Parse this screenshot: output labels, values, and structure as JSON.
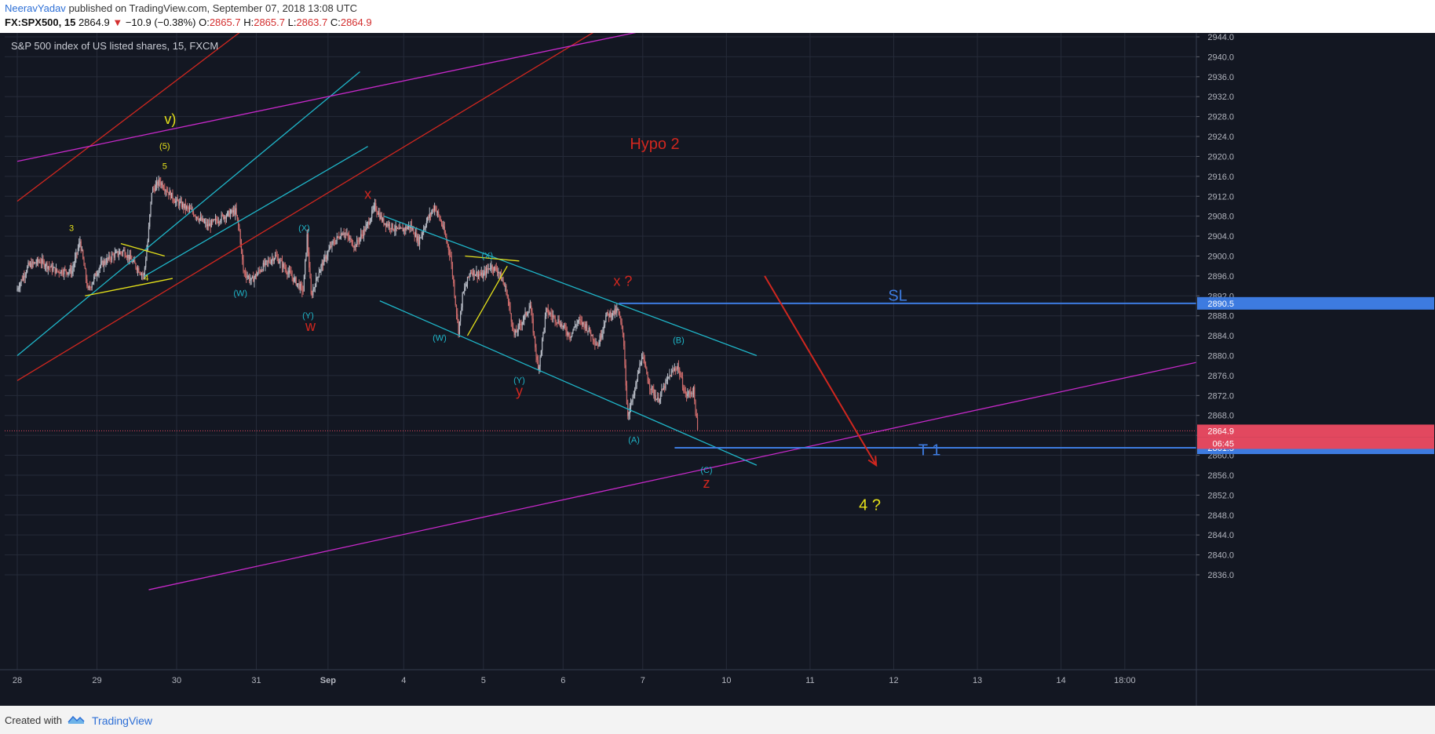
{
  "header": {
    "author": "NeeravYadav",
    "published_text": "published on TradingView.com, September 07, 2018 13:08 UTC",
    "symbol": "FX:SPX500, 15",
    "last": "2864.9",
    "change": "−10.9 (−0.38%)",
    "open_label": "O:",
    "open": "2865.7",
    "high_label": "H:",
    "high": "2865.7",
    "low_label": "L:",
    "low": "2863.7",
    "close_label": "C:",
    "close": "2864.9"
  },
  "footer": {
    "created_with": "Created with",
    "brand": "TradingView",
    "logo_icon": "tradingview-logo-icon"
  },
  "colors": {
    "background": "#131722",
    "grid": "#262b39",
    "candle_up": "#b8bcc6",
    "candle_down": "#cc6b6b",
    "cyan": "#1fb6c9",
    "red": "#d0271f",
    "magenta": "#c629c9",
    "yellow": "#e5e11a",
    "blue_level": "#3d7be0"
  },
  "chart_data": {
    "type": "candlestick",
    "title": "S&P 500 index of US listed shares, 15, FXCM",
    "ylim": [
      2832,
      2946
    ],
    "y_ticks": [
      "2944.0",
      "2940.0",
      "2936.0",
      "2932.0",
      "2928.0",
      "2924.0",
      "2920.0",
      "2916.0",
      "2912.0",
      "2908.0",
      "2904.0",
      "2900.0",
      "2896.0",
      "2892.0",
      "2888.0",
      "2884.0",
      "2880.0",
      "2876.0",
      "2872.0",
      "2868.0",
      "2864.0",
      "2860.0",
      "2856.0",
      "2852.0",
      "2848.0",
      "2844.0",
      "2840.0",
      "2836.0"
    ],
    "x_ticks": [
      "28",
      "29",
      "30",
      "31",
      "Sep",
      "4",
      "5",
      "6",
      "7",
      "10",
      "11",
      "12",
      "13",
      "14",
      "18:00"
    ],
    "price_path": [
      [
        0,
        2893
      ],
      [
        0.15,
        2898
      ],
      [
        0.3,
        2899
      ],
      [
        0.5,
        2897
      ],
      [
        0.7,
        2897
      ],
      [
        0.8,
        2903
      ],
      [
        0.9,
        2893
      ],
      [
        1.05,
        2898
      ],
      [
        1.2,
        2900
      ],
      [
        1.35,
        2901
      ],
      [
        1.5,
        2898
      ],
      [
        1.6,
        2896
      ],
      [
        1.65,
        2903
      ],
      [
        1.7,
        2913
      ],
      [
        1.8,
        2915
      ],
      [
        1.9,
        2913
      ],
      [
        2.0,
        2911
      ],
      [
        2.2,
        2909
      ],
      [
        2.4,
        2906
      ],
      [
        2.6,
        2908
      ],
      [
        2.75,
        2909
      ],
      [
        2.8,
        2905
      ],
      [
        2.85,
        2897
      ],
      [
        2.95,
        2895
      ],
      [
        3.1,
        2898
      ],
      [
        3.25,
        2900
      ],
      [
        3.35,
        2898
      ],
      [
        3.5,
        2895
      ],
      [
        3.6,
        2893
      ],
      [
        3.65,
        2904
      ],
      [
        3.7,
        2892
      ],
      [
        3.8,
        2897
      ],
      [
        3.95,
        2902
      ],
      [
        4.1,
        2905
      ],
      [
        4.25,
        2902
      ],
      [
        4.4,
        2906
      ],
      [
        4.5,
        2910
      ],
      [
        4.6,
        2907
      ],
      [
        4.8,
        2905
      ],
      [
        4.95,
        2906
      ],
      [
        5.05,
        2903
      ],
      [
        5.15,
        2907
      ],
      [
        5.25,
        2910
      ],
      [
        5.35,
        2906
      ],
      [
        5.45,
        2900
      ],
      [
        5.55,
        2885
      ],
      [
        5.6,
        2892
      ],
      [
        5.7,
        2897
      ],
      [
        5.85,
        2896
      ],
      [
        5.95,
        2898
      ],
      [
        6.05,
        2897
      ],
      [
        6.15,
        2893
      ],
      [
        6.25,
        2884
      ],
      [
        6.35,
        2887
      ],
      [
        6.45,
        2890
      ],
      [
        6.55,
        2877
      ],
      [
        6.65,
        2889
      ],
      [
        6.8,
        2887
      ],
      [
        6.95,
        2884
      ],
      [
        7.05,
        2887
      ],
      [
        7.15,
        2886
      ],
      [
        7.3,
        2882
      ],
      [
        7.4,
        2888
      ],
      [
        7.55,
        2889
      ],
      [
        7.62,
        2884
      ],
      [
        7.67,
        2868
      ],
      [
        7.75,
        2872
      ],
      [
        7.85,
        2880
      ],
      [
        7.95,
        2874
      ],
      [
        8.05,
        2871
      ],
      [
        8.2,
        2876
      ],
      [
        8.3,
        2878
      ],
      [
        8.4,
        2872
      ],
      [
        8.5,
        2873
      ],
      [
        8.55,
        2864.9
      ]
    ],
    "series": [
      {
        "name": "SL",
        "value": "2890.5"
      },
      {
        "name": "T 1",
        "value": "2861.5"
      },
      {
        "name": "last",
        "value": "2864.9",
        "countdown": "06:45"
      }
    ],
    "annotations": [
      {
        "text": "v)",
        "x": 1.92,
        "y": 2926.5,
        "color": "yellow"
      },
      {
        "text": "(5)",
        "x": 1.85,
        "y": 2921.5,
        "color": "yellow"
      },
      {
        "text": "5",
        "x": 1.85,
        "y": 2917.5,
        "color": "yellow"
      },
      {
        "text": "3",
        "x": 0.68,
        "y": 2905,
        "color": "yellow"
      },
      {
        "text": "4",
        "x": 1.62,
        "y": 2895,
        "color": "yellow"
      },
      {
        "text": "(W)",
        "x": 2.8,
        "y": 2892,
        "color": "cyan"
      },
      {
        "text": "(X)",
        "x": 3.6,
        "y": 2905,
        "color": "cyan"
      },
      {
        "text": "(Y)",
        "x": 3.65,
        "y": 2887.5,
        "color": "cyan"
      },
      {
        "text": "w",
        "x": 3.68,
        "y": 2885,
        "color": "red"
      },
      {
        "text": "x",
        "x": 4.4,
        "y": 2911.5,
        "color": "red"
      },
      {
        "text": "(X)",
        "x": 5.9,
        "y": 2899.5,
        "color": "cyan"
      },
      {
        "text": "(W)",
        "x": 5.3,
        "y": 2883,
        "color": "cyan"
      },
      {
        "text": "(Y)",
        "x": 6.3,
        "y": 2874.5,
        "color": "cyan"
      },
      {
        "text": "y",
        "x": 6.3,
        "y": 2872,
        "color": "red"
      },
      {
        "text": "x ?",
        "x": 7.6,
        "y": 2894,
        "color": "red"
      },
      {
        "text": "(B)",
        "x": 8.3,
        "y": 2882.5,
        "color": "cyan"
      },
      {
        "text": "(A)",
        "x": 7.74,
        "y": 2862.5,
        "color": "cyan"
      },
      {
        "text": "(C)",
        "x": 8.65,
        "y": 2856.5,
        "color": "cyan"
      },
      {
        "text": "z",
        "x": 8.65,
        "y": 2853.5,
        "color": "red"
      },
      {
        "text": "Hypo 2",
        "x": 8.0,
        "y": 2921.5,
        "color": "red"
      },
      {
        "text": "SL",
        "x": 11.05,
        "y": 2891,
        "color": "blue_level"
      },
      {
        "text": "T 1",
        "x": 11.45,
        "y": 2860,
        "color": "blue_level"
      },
      {
        "text": "4 ?",
        "x": 10.7,
        "y": 2849,
        "color": "yellow"
      }
    ],
    "trendlines": [
      {
        "color": "red",
        "from": [
          0,
          2911
        ],
        "to": [
          4.2,
          2962
        ]
      },
      {
        "color": "red",
        "from": [
          0,
          2875
        ],
        "to": [
          9.0,
          2962
        ]
      },
      {
        "color": "cyan",
        "from": [
          0,
          2880
        ],
        "to": [
          4.3,
          2937
        ]
      },
      {
        "color": "cyan",
        "from": [
          1.6,
          2896
        ],
        "to": [
          4.4,
          2922
        ]
      },
      {
        "color": "magenta",
        "from": [
          0,
          2919
        ],
        "to": [
          10.2,
          2953
        ]
      },
      {
        "color": "magenta",
        "from": [
          1.65,
          2833
        ],
        "to": [
          14.9,
          2879
        ]
      },
      {
        "color": "cyan",
        "from": [
          4.6,
          2908
        ],
        "to": [
          9.28,
          2880
        ]
      },
      {
        "color": "cyan",
        "from": [
          4.55,
          2891
        ],
        "to": [
          9.28,
          2858
        ]
      },
      {
        "color": "yellow",
        "from": [
          0.85,
          2892
        ],
        "to": [
          1.95,
          2895.5
        ]
      },
      {
        "color": "yellow",
        "from": [
          1.3,
          2902.5
        ],
        "to": [
          1.85,
          2900
        ]
      },
      {
        "color": "yellow",
        "from": [
          5.62,
          2900
        ],
        "to": [
          6.3,
          2899
        ]
      },
      {
        "color": "yellow",
        "from": [
          5.65,
          2884
        ],
        "to": [
          6.15,
          2898
        ]
      },
      {
        "color": "blue_level",
        "from": [
          7.55,
          2890.5
        ],
        "to": [
          14.9,
          2890.5
        ]
      },
      {
        "color": "blue_level",
        "from": [
          8.25,
          2861.5
        ],
        "to": [
          14.9,
          2861.5
        ]
      }
    ],
    "arrow": {
      "color": "red",
      "from": [
        9.38,
        2896
      ],
      "to": [
        10.78,
        2858
      ]
    },
    "grid": true
  }
}
